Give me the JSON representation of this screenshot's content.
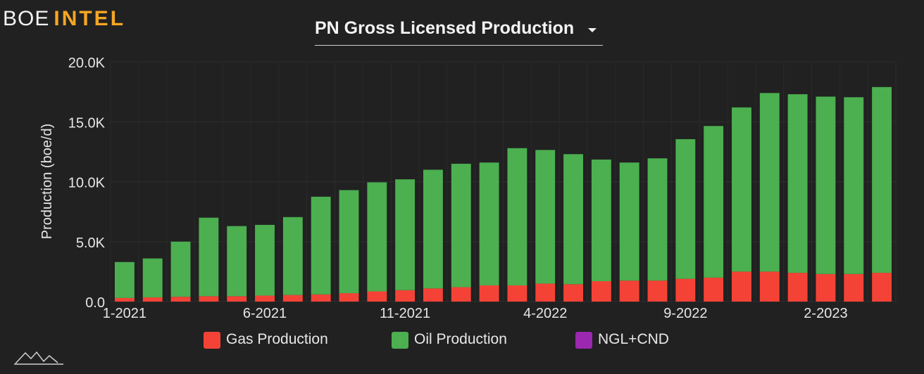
{
  "brand": {
    "word1": "BOE",
    "word2": "INTEL",
    "accent_color": "#f5a623"
  },
  "header": {
    "title": "PN Gross Licensed Production",
    "dropdown_icon": "caret-down-icon"
  },
  "footer": {
    "icon": "mountain-logo-icon"
  },
  "chart_data": {
    "type": "bar",
    "stacked": true,
    "ylabel": "Production (boe/d)",
    "ylim": [
      0,
      20000
    ],
    "yticks": [
      "0.0",
      "5.0K",
      "10.0K",
      "15.0K",
      "20.0K"
    ],
    "xtick_labels": [
      {
        "index": 0,
        "label": "1-2021"
      },
      {
        "index": 5,
        "label": "6-2021"
      },
      {
        "index": 10,
        "label": "11-2021"
      },
      {
        "index": 15,
        "label": "4-2022"
      },
      {
        "index": 20,
        "label": "9-2022"
      },
      {
        "index": 25,
        "label": "2-2023"
      }
    ],
    "categories": [
      "1-2021",
      "2-2021",
      "3-2021",
      "4-2021",
      "5-2021",
      "6-2021",
      "7-2021",
      "8-2021",
      "9-2021",
      "10-2021",
      "11-2021",
      "12-2021",
      "1-2022",
      "2-2022",
      "3-2022",
      "4-2022",
      "5-2022",
      "6-2022",
      "7-2022",
      "8-2022",
      "9-2022",
      "10-2022",
      "11-2022",
      "12-2022",
      "1-2023",
      "2-2023",
      "3-2023",
      "4-2023"
    ],
    "series": [
      {
        "name": "Gas Production",
        "color": "#f44336",
        "values": [
          300,
          350,
          400,
          450,
          450,
          500,
          550,
          600,
          700,
          850,
          950,
          1100,
          1200,
          1350,
          1350,
          1500,
          1450,
          1700,
          1750,
          1750,
          1900,
          2000,
          2500,
          2500,
          2400,
          2300,
          2300,
          2400
        ]
      },
      {
        "name": "Oil Production",
        "color": "#4caf50",
        "values": [
          3000,
          3250,
          4600,
          6550,
          5850,
          5900,
          6500,
          8150,
          8600,
          9100,
          9250,
          9900,
          10300,
          10250,
          11450,
          11150,
          10850,
          10150,
          9850,
          10200,
          11650,
          12650,
          13700,
          14900,
          14900,
          14800,
          14750,
          15500
        ]
      },
      {
        "name": "NGL+CND",
        "color": "#9c27b0",
        "values": [
          0,
          0,
          0,
          0,
          0,
          0,
          0,
          0,
          0,
          0,
          0,
          0,
          0,
          0,
          0,
          0,
          0,
          0,
          0,
          0,
          0,
          0,
          0,
          0,
          0,
          0,
          0,
          0
        ]
      }
    ],
    "grid": true,
    "legend_position": "bottom"
  }
}
